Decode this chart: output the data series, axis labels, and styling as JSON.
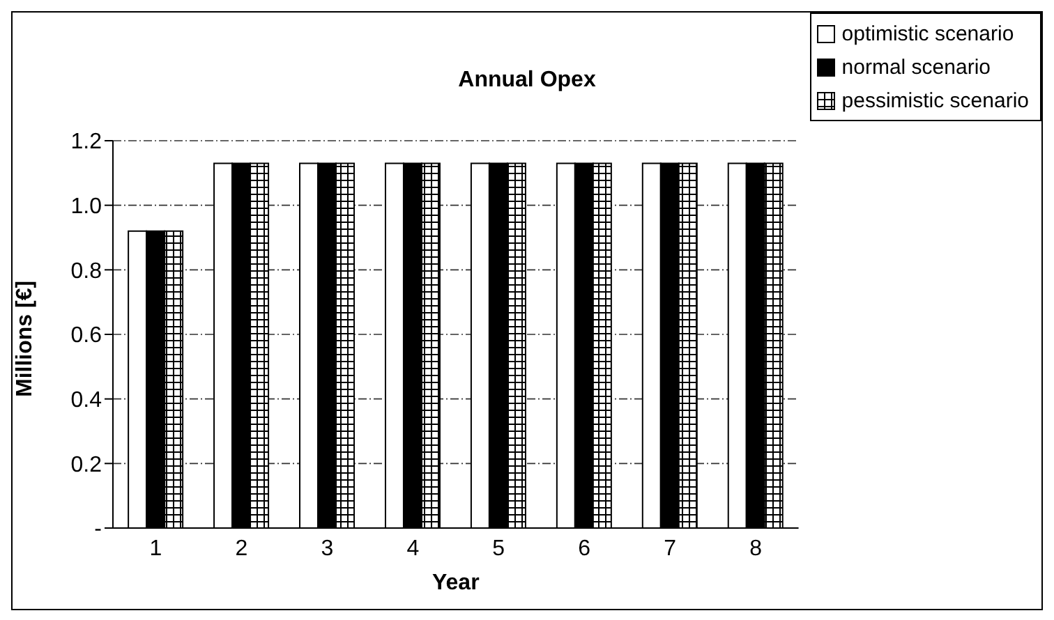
{
  "chart_data": {
    "type": "bar",
    "title": "Annual Opex",
    "xlabel": "Year",
    "ylabel": "Millions [€]",
    "categories": [
      "1",
      "2",
      "3",
      "4",
      "5",
      "6",
      "7",
      "8"
    ],
    "series": [
      {
        "name": "optimistic scenario",
        "color": "#ffffff",
        "values": [
          0.92,
          1.13,
          1.13,
          1.13,
          1.13,
          1.13,
          1.13,
          1.13
        ]
      },
      {
        "name": "normal scenario",
        "color": "#000000",
        "values": [
          0.92,
          1.13,
          1.13,
          1.13,
          1.13,
          1.13,
          1.13,
          1.13
        ]
      },
      {
        "name": "pessimistic scenario",
        "color": "#000000",
        "values": [
          0.92,
          1.13,
          1.13,
          1.13,
          1.13,
          1.13,
          1.13,
          1.13
        ]
      }
    ],
    "ylim": [
      0,
      1.2
    ],
    "yticks": [
      {
        "value": 0,
        "label": "-"
      },
      0.2,
      0.4,
      0.6,
      0.8,
      {
        "value": 1,
        "label": "1.0"
      },
      1.2
    ],
    "grid": "y",
    "legend": "top right"
  }
}
